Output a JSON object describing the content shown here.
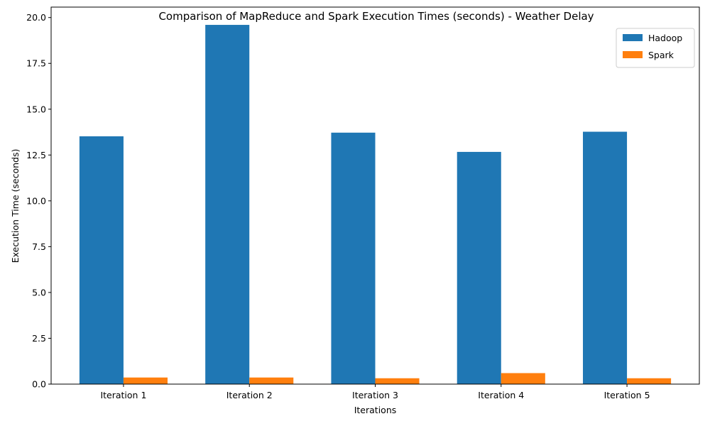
{
  "chart_data": {
    "type": "bar",
    "title": "Comparison of MapReduce and Spark Execution Times (seconds) - Weather Delay",
    "xlabel": "Iterations",
    "ylabel": "Execution Time (seconds)",
    "categories": [
      "Iteration 1",
      "Iteration 2",
      "Iteration 3",
      "Iteration 4",
      "Iteration 5"
    ],
    "series": [
      {
        "name": "Hadoop",
        "color": "#1f77b4",
        "values": [
          13.52,
          19.6,
          13.72,
          12.67,
          13.77
        ]
      },
      {
        "name": "Spark",
        "color": "#ff7f0e",
        "values": [
          0.36,
          0.36,
          0.32,
          0.6,
          0.32
        ]
      }
    ],
    "ylim": [
      0,
      20.57
    ],
    "yticks": [
      "0.0",
      "2.5",
      "5.0",
      "7.5",
      "10.0",
      "12.5",
      "15.0",
      "17.5",
      "20.0"
    ],
    "ytick_values": [
      0,
      2.5,
      5,
      7.5,
      10,
      12.5,
      15,
      17.5,
      20
    ],
    "legend_position": "top-right",
    "grid": false
  }
}
